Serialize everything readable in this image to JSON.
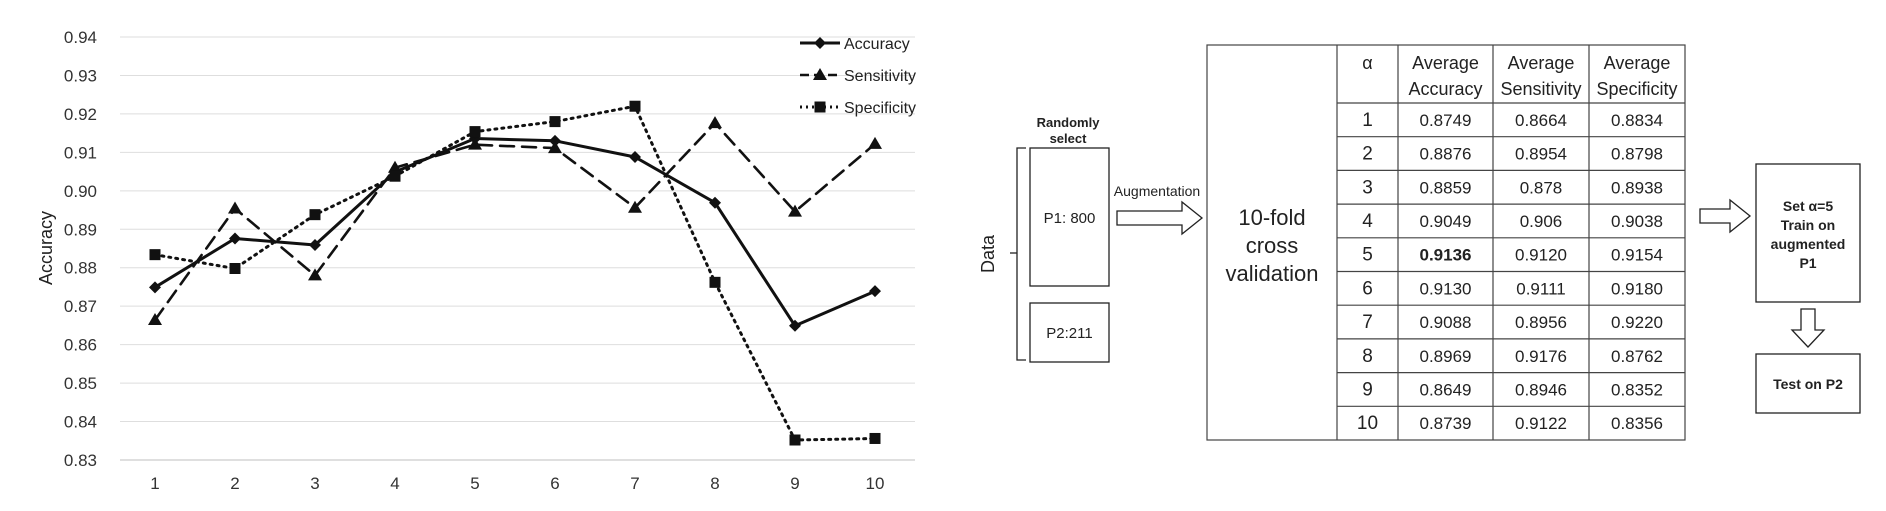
{
  "chart_data": {
    "type": "line",
    "title": "",
    "xlabel": "",
    "ylabel": "Accuracy",
    "x": [
      1,
      2,
      3,
      4,
      5,
      6,
      7,
      8,
      9,
      10
    ],
    "ylim": [
      0.83,
      0.94
    ],
    "yticks": [
      "0.83",
      "0.84",
      "0.85",
      "0.86",
      "0.87",
      "0.88",
      "0.89",
      "0.90",
      "0.91",
      "0.92",
      "0.93",
      "0.94"
    ],
    "grid": true,
    "legend_position": "top-right",
    "series": [
      {
        "name": "Accuracy",
        "style": "solid",
        "marker": "diamond",
        "values": [
          0.8749,
          0.8876,
          0.8859,
          0.9049,
          0.9136,
          0.913,
          0.9088,
          0.8969,
          0.8649,
          0.8739
        ]
      },
      {
        "name": "Sensitivity",
        "style": "dashed",
        "marker": "triangle",
        "values": [
          0.8664,
          0.8954,
          0.878,
          0.906,
          0.912,
          0.9111,
          0.8956,
          0.9176,
          0.8946,
          0.9122
        ]
      },
      {
        "name": "Specificity",
        "style": "dotted",
        "marker": "square",
        "values": [
          0.8834,
          0.8798,
          0.8938,
          0.9038,
          0.9154,
          0.918,
          0.922,
          0.8762,
          0.8352,
          0.8356
        ]
      }
    ]
  },
  "diagram": {
    "data_label": "Data",
    "randomly_select": [
      "Randomly",
      "select"
    ],
    "p1_label": "P1: 800",
    "p2_label": "P2:211",
    "augmentation_label": "Augmentation",
    "cv_label": [
      "10-fold",
      "cross",
      "validation"
    ],
    "set_box": [
      "Set α=5",
      "Train on",
      "augmented",
      "P1"
    ],
    "test_box": "Test on P2"
  },
  "table": {
    "headers": [
      [
        "α"
      ],
      [
        "Average",
        "Accuracy"
      ],
      [
        "Average",
        "Sensitivity"
      ],
      [
        "Average",
        "Specificity"
      ]
    ],
    "rows": [
      [
        "1",
        "0.8749",
        "0.8664",
        "0.8834"
      ],
      [
        "2",
        "0.8876",
        "0.8954",
        "0.8798"
      ],
      [
        "3",
        "0.8859",
        "0.878",
        "0.8938"
      ],
      [
        "4",
        "0.9049",
        "0.906",
        "0.9038"
      ],
      [
        "5",
        "0.9136",
        "0.9120",
        "0.9154"
      ],
      [
        "6",
        "0.9130",
        "0.9111",
        "0.9180"
      ],
      [
        "7",
        "0.9088",
        "0.8956",
        "0.9220"
      ],
      [
        "8",
        "0.8969",
        "0.9176",
        "0.8762"
      ],
      [
        "9",
        "0.8649",
        "0.8946",
        "0.8352"
      ],
      [
        "10",
        "0.8739",
        "0.9122",
        "0.8356"
      ]
    ],
    "bold_cell": [
      4,
      1
    ]
  }
}
